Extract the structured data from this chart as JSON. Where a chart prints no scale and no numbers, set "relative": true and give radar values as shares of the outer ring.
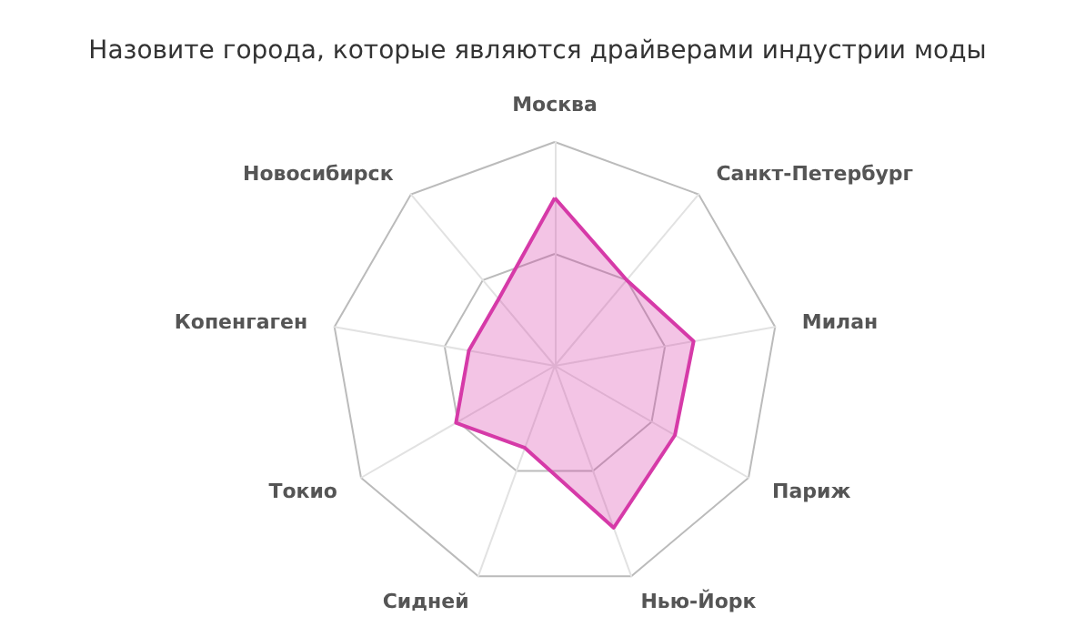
{
  "chart_data": {
    "type": "radar",
    "title": "Назовите города, которые являются драйверами индустрии моды",
    "relative": true,
    "categories": [
      "Москва",
      "Санкт-Петербург",
      "Милан",
      "Париж",
      "Нью-Йорк",
      "Сидней",
      "Токио",
      "Копенгаген",
      "Новосибирск"
    ],
    "series": [
      {
        "color": "#d63aa8",
        "values": [
          0.75,
          0.5,
          0.63,
          0.62,
          0.77,
          0.39,
          0.51,
          0.39,
          0.39
        ]
      }
    ],
    "marker": "none"
  }
}
